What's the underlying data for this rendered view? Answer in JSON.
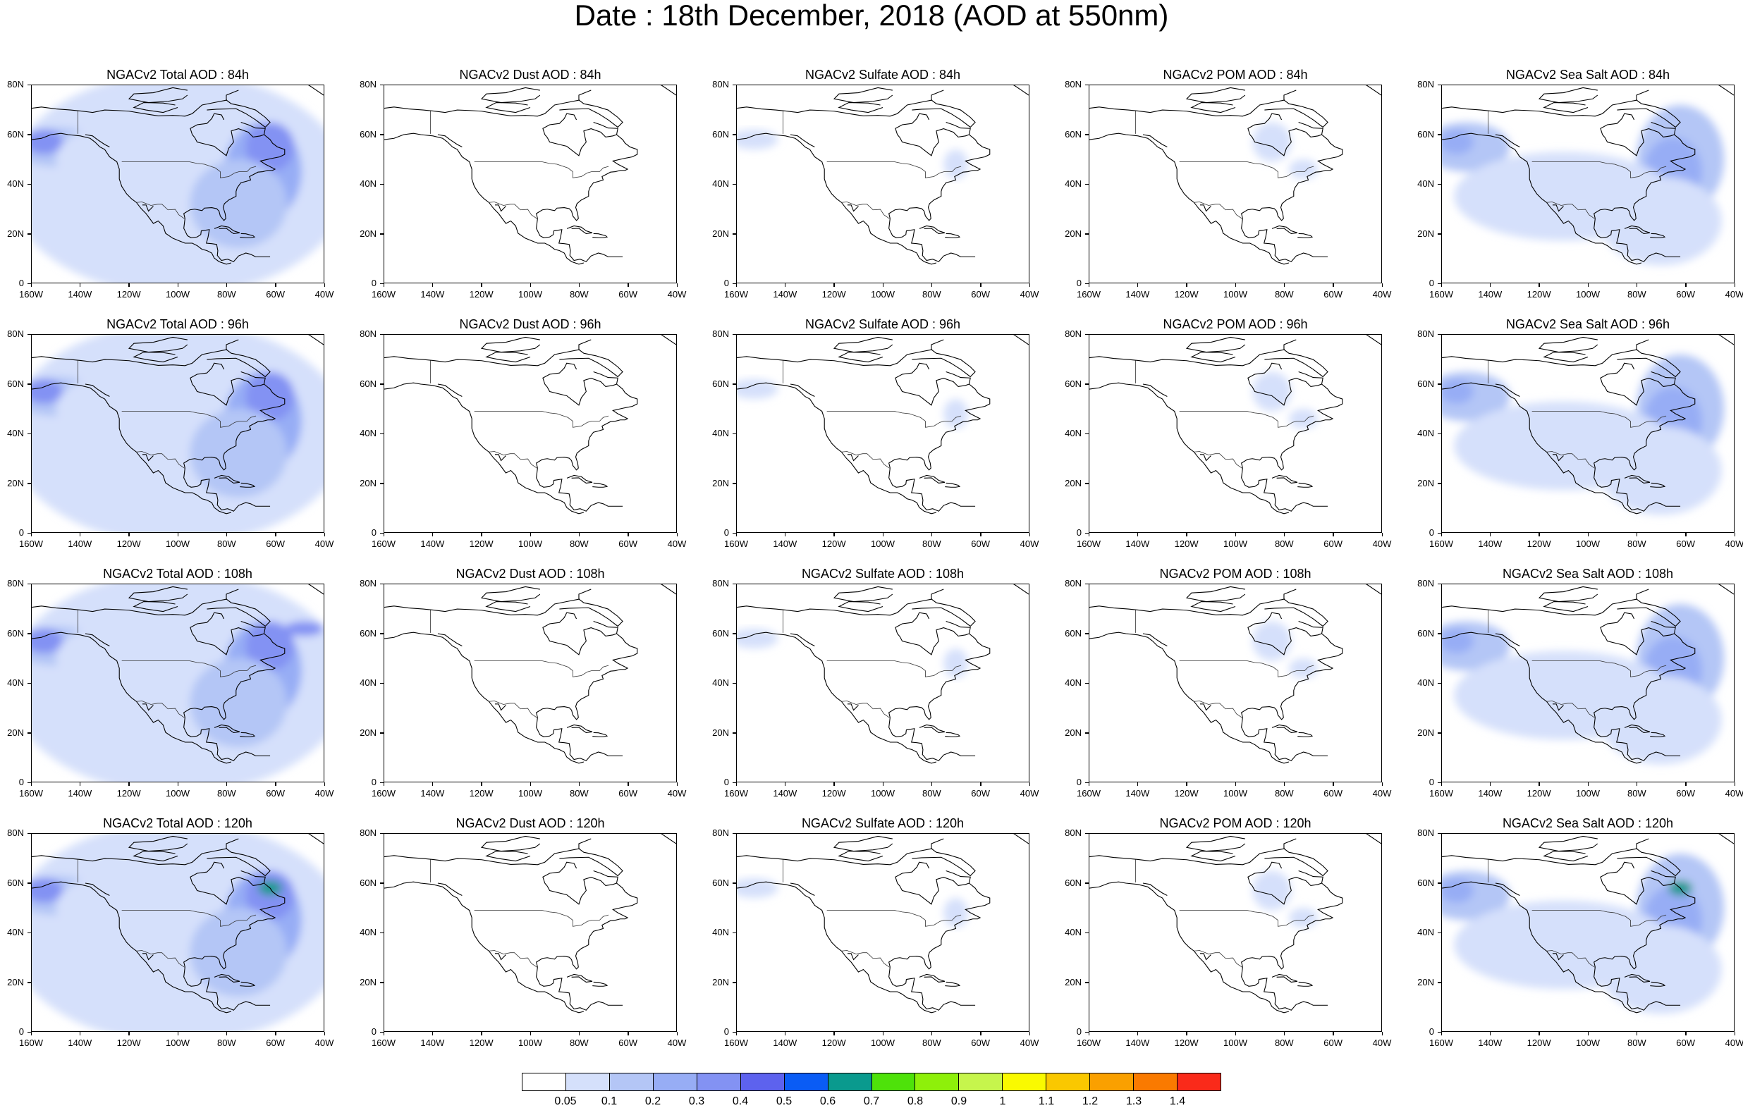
{
  "title": "Date : 18th December, 2018 (AOD at 550nm)",
  "rows": [
    "84h",
    "96h",
    "108h",
    "120h"
  ],
  "columns": [
    "Total",
    "Dust",
    "Sulfate",
    "POM",
    "Sea Salt"
  ],
  "panel_titles": [
    [
      "NGACv2 Total AOD : 84h",
      "NGACv2 Dust AOD : 84h",
      "NGACv2 Sulfate AOD : 84h",
      "NGACv2 POM AOD : 84h",
      "NGACv2 Sea Salt AOD : 84h"
    ],
    [
      "NGACv2 Total AOD : 96h",
      "NGACv2 Dust AOD : 96h",
      "NGACv2 Sulfate AOD : 96h",
      "NGACv2 POM AOD : 96h",
      "NGACv2 Sea Salt AOD : 96h"
    ],
    [
      "NGACv2 Total AOD : 108h",
      "NGACv2 Dust AOD : 108h",
      "NGACv2 Sulfate AOD : 108h",
      "NGACv2 POM AOD : 108h",
      "NGACv2 Sea Salt AOD : 108h"
    ],
    [
      "NGACv2 Total AOD : 120h",
      "NGACv2 Dust AOD : 120h",
      "NGACv2 Sulfate AOD : 120h",
      "NGACv2 POM AOD : 120h",
      "NGACv2 Sea Salt  AOD : 120h"
    ]
  ],
  "lat_labels": [
    "80N",
    "60N",
    "40N",
    "20N",
    "0"
  ],
  "lon_labels": [
    "160W",
    "140W",
    "120W",
    "100W",
    "80W",
    "60W",
    "40W"
  ],
  "colorbar": {
    "levels": [
      "0.05",
      "0.1",
      "0.2",
      "0.3",
      "0.4",
      "0.5",
      "0.6",
      "0.7",
      "0.8",
      "0.9",
      "1",
      "1.1",
      "1.2",
      "1.3",
      "1.4"
    ],
    "colors": [
      "#ffffff",
      "#d5e0fb",
      "#b4c6f6",
      "#97adf5",
      "#8392f3",
      "#5d62ee",
      "#0a5cf5",
      "#0a9a8e",
      "#4ee20a",
      "#8ef00a",
      "#c6f54c",
      "#fafa00",
      "#fac800",
      "#faa000",
      "#fa7a00",
      "#fa2a1a"
    ]
  }
}
